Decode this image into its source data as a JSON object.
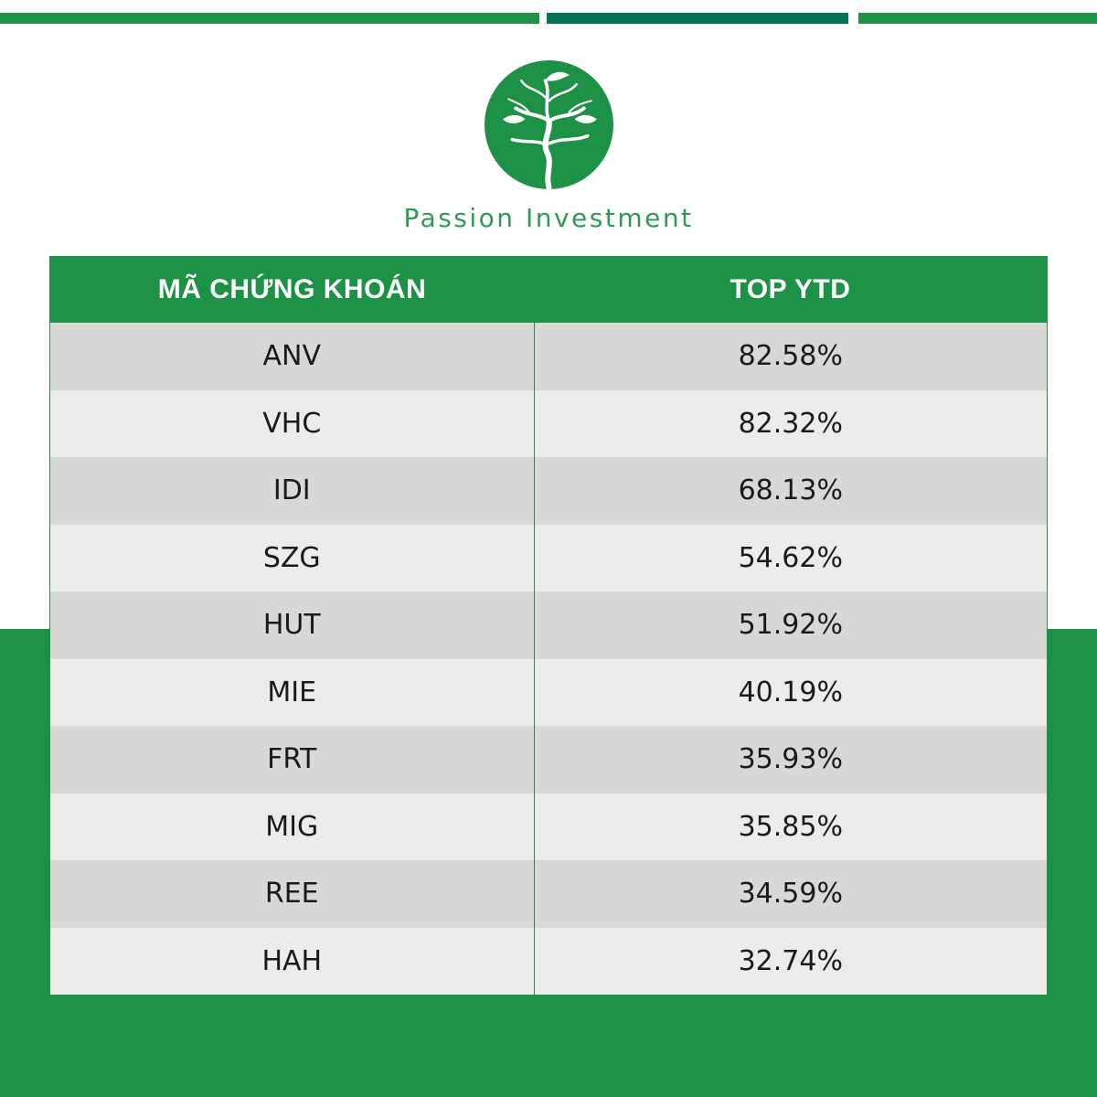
{
  "brand": {
    "name": "Passion Investment",
    "colors": {
      "primary": "#1d9146",
      "dark_accent": "#0b7355",
      "row_dark": "#d8d8d8",
      "row_light": "#ececec"
    }
  },
  "table": {
    "headers": [
      "MÃ CHỨNG KHOÁN",
      "TOP YTD"
    ],
    "rows": [
      {
        "ticker": "ANV",
        "ytd": "82.58%"
      },
      {
        "ticker": "VHC",
        "ytd": "82.32%"
      },
      {
        "ticker": "IDI",
        "ytd": "68.13%"
      },
      {
        "ticker": "SZG",
        "ytd": "54.62%"
      },
      {
        "ticker": "HUT",
        "ytd": "51.92%"
      },
      {
        "ticker": "MIE",
        "ytd": "40.19%"
      },
      {
        "ticker": "FRT",
        "ytd": "35.93%"
      },
      {
        "ticker": "MIG",
        "ytd": "35.85%"
      },
      {
        "ticker": "REE",
        "ytd": "34.59%"
      },
      {
        "ticker": "HAH",
        "ytd": "32.74%"
      }
    ]
  },
  "chart_data": {
    "type": "table",
    "columns": [
      "MÃ CHỨNG KHOÁN",
      "TOP YTD"
    ],
    "categories": [
      "ANV",
      "VHC",
      "IDI",
      "SZG",
      "HUT",
      "MIE",
      "FRT",
      "MIG",
      "REE",
      "HAH"
    ],
    "values": [
      82.58,
      82.32,
      68.13,
      54.62,
      51.92,
      40.19,
      35.93,
      35.85,
      34.59,
      32.74
    ],
    "unit": "%"
  }
}
